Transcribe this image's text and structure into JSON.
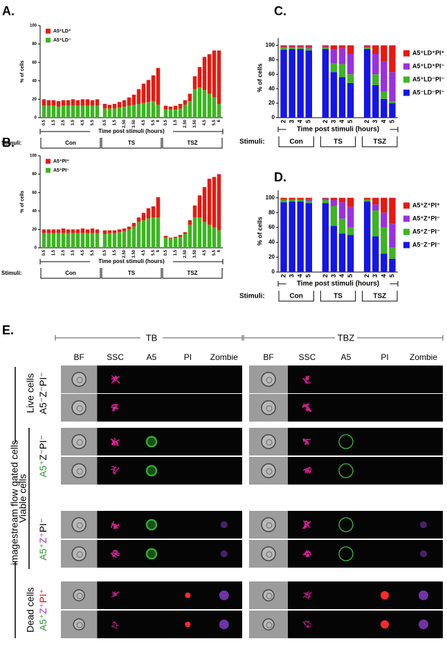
{
  "chart_data": [
    {
      "panel": "A.",
      "type": "bar",
      "stacked": true,
      "ylabel": "% of cells",
      "xlabel": "Time post stimuli (hours)",
      "stimuli_label": "Stimuli:",
      "groups": [
        "Con",
        "TS",
        "TSZ"
      ],
      "categories": [
        "0.5",
        null,
        "1.5",
        null,
        "2.5",
        null,
        "3.5",
        null,
        "4.5",
        null,
        "5.5",
        null,
        "0.5",
        null,
        "1.5",
        null,
        "2.50",
        null,
        "3.50",
        null,
        "4.5",
        null,
        "5.5",
        "6",
        "0.5",
        null,
        "1.5",
        null,
        "2.50",
        null,
        "3.50",
        null,
        "4.5",
        null,
        "5.5",
        "6"
      ],
      "series": [
        {
          "name": "A5⁺LD⁺",
          "color": "#e8190f",
          "values": [
            7,
            6,
            6,
            6,
            6,
            6,
            7,
            6,
            7,
            7,
            6,
            7,
            5,
            4,
            5,
            6,
            7,
            9,
            11,
            16,
            21,
            24,
            28,
            40,
            4,
            3,
            4,
            5,
            5,
            8,
            14,
            22,
            36,
            43,
            51,
            58
          ]
        },
        {
          "name": "A5⁺LD⁻",
          "color": "#3cb521",
          "values": [
            13,
            13,
            13,
            12,
            13,
            13,
            13,
            13,
            13,
            13,
            13,
            13,
            10,
            10,
            10,
            11,
            12,
            13,
            14,
            15,
            16,
            17,
            18,
            14,
            9,
            9,
            9,
            10,
            14,
            18,
            31,
            33,
            30,
            26,
            22,
            15
          ]
        }
      ],
      "ylim": [
        0,
        100
      ],
      "yticks": [
        0,
        20,
        40,
        60,
        80,
        100
      ],
      "legend": "upper left"
    },
    {
      "panel": "B.",
      "type": "bar",
      "stacked": true,
      "ylabel": "% of cells",
      "xlabel": "Time post stimuli (hours)",
      "stimuli_label": "Stimuli:",
      "groups": [
        "Con",
        "TS",
        "TSZ"
      ],
      "categories": [
        "0.5",
        null,
        "1.5",
        null,
        "2.5",
        null,
        "3.5",
        null,
        "4.5",
        null,
        "5.5",
        null,
        "0.5",
        null,
        "1.5",
        null,
        "2.50",
        null,
        "3.50",
        null,
        "4.5",
        null,
        "5.5",
        "6",
        "0.5",
        null,
        "1.5",
        null,
        "2.50",
        null,
        "3.50",
        null,
        "4.5",
        null,
        "5.5",
        "6"
      ],
      "series": [
        {
          "name": "A5⁺PI⁺",
          "color": "#e8190f",
          "values": [
            4,
            4,
            4,
            4,
            5,
            4,
            4,
            4,
            5,
            4,
            5,
            4,
            4,
            3,
            3,
            3,
            3,
            3,
            4,
            5,
            8,
            11,
            12,
            22,
            2,
            1,
            1,
            2,
            2,
            5,
            13,
            24,
            38,
            50,
            55,
            61
          ]
        },
        {
          "name": "A5⁺PI⁻",
          "color": "#3cb521",
          "values": [
            16,
            16,
            16,
            16,
            16,
            16,
            16,
            16,
            16,
            16,
            16,
            16,
            15,
            16,
            16,
            17,
            18,
            20,
            23,
            28,
            30,
            32,
            33,
            33,
            11,
            10,
            11,
            12,
            15,
            25,
            33,
            33,
            28,
            25,
            22,
            19
          ]
        }
      ],
      "ylim": [
        0,
        100
      ],
      "yticks": [
        0,
        20,
        40,
        60,
        80,
        100
      ],
      "legend": "upper left"
    },
    {
      "panel": "C.",
      "type": "bar",
      "stacked": true,
      "ylabel": "% of cells",
      "xlabel": "Time post stimuli (hours)",
      "stimuli_label": "Stimuli:",
      "groups": [
        "Con",
        "TS",
        "TSZ"
      ],
      "categories": [
        "2",
        "3",
        "4",
        "5",
        "2",
        "3",
        "4",
        "5",
        "2",
        "3",
        "4",
        "5"
      ],
      "series": [
        {
          "name": "A5⁺LD⁺PI⁺",
          "color": "#e8190f",
          "values": [
            2,
            2,
            2,
            2,
            2,
            6,
            4,
            12,
            2,
            12,
            22,
            37
          ]
        },
        {
          "name": "A5⁺LD⁺PI⁻",
          "color": "#9a30e0",
          "values": [
            1,
            1,
            1,
            2,
            1,
            19,
            22,
            28,
            1,
            28,
            42,
            40
          ]
        },
        {
          "name": "A5⁺LD⁻PI⁻",
          "color": "#3cb521",
          "values": [
            3,
            2,
            2,
            3,
            2,
            12,
            18,
            12,
            2,
            15,
            10,
            3
          ]
        },
        {
          "name": "A5⁻LD⁻PI⁻",
          "color": "#1515e8",
          "values": [
            94,
            95,
            95,
            93,
            95,
            63,
            56,
            48,
            95,
            45,
            26,
            20
          ]
        }
      ],
      "ylim": [
        0,
        110
      ],
      "yticks": [
        0,
        20,
        40,
        60,
        80,
        100
      ],
      "legend": "right"
    },
    {
      "panel": "D.",
      "type": "bar",
      "stacked": true,
      "ylabel": "% of cells",
      "xlabel": "Time post stimuli (hours)",
      "stimuli_label": "Stimuli:",
      "groups": [
        "Con",
        "TS",
        "TSZ"
      ],
      "categories": [
        "2",
        "3",
        "4",
        "5",
        "2",
        "3",
        "4",
        "5",
        "2",
        "3",
        "4",
        "5"
      ],
      "series": [
        {
          "name": "A5⁺Z⁺PI⁺",
          "color": "#e8190f",
          "values": [
            2,
            2,
            2,
            2,
            1,
            3,
            6,
            12,
            2,
            9,
            20,
            35
          ]
        },
        {
          "name": "A5⁺Z⁺PI⁻",
          "color": "#9a30e0",
          "values": [
            1,
            1,
            1,
            2,
            2,
            8,
            22,
            28,
            1,
            8,
            20,
            32
          ]
        },
        {
          "name": "A5⁺Z⁻PI⁻",
          "color": "#3cb521",
          "values": [
            3,
            2,
            2,
            3,
            4,
            27,
            20,
            10,
            2,
            35,
            35,
            15
          ]
        },
        {
          "name": "A5⁻Z⁻PI⁻",
          "color": "#1515e8",
          "values": [
            94,
            95,
            95,
            93,
            93,
            62,
            52,
            50,
            95,
            48,
            25,
            18
          ]
        }
      ],
      "ylim": [
        0,
        110
      ],
      "yticks": [
        0,
        20,
        40,
        60,
        80,
        100
      ],
      "legend": "right"
    }
  ],
  "panel_e": {
    "label": "E.",
    "side_label": "imagestream flow gated cells",
    "conditions": [
      {
        "name": "TB",
        "channels": [
          "BF",
          "SSC",
          "A5",
          "PI",
          "Zombie"
        ]
      },
      {
        "name": "TBZ",
        "channels": [
          "BF",
          "SSC",
          "A5",
          "PI",
          "Zombie"
        ]
      }
    ],
    "row_groups": [
      {
        "name": "Live cells",
        "rows": [
          [
            "A5⁻",
            "Z⁻",
            "PI⁻"
          ]
        ]
      },
      {
        "name": "Viable cells",
        "rows": [
          [
            "A5⁺",
            "Z⁻",
            "PI⁻"
          ],
          [
            "A5⁺",
            "Z⁺",
            "PI⁻"
          ]
        ]
      },
      {
        "name": "Dead cells",
        "rows": [
          [
            "A5⁺",
            "Z⁺",
            "PI⁺"
          ]
        ]
      }
    ]
  }
}
